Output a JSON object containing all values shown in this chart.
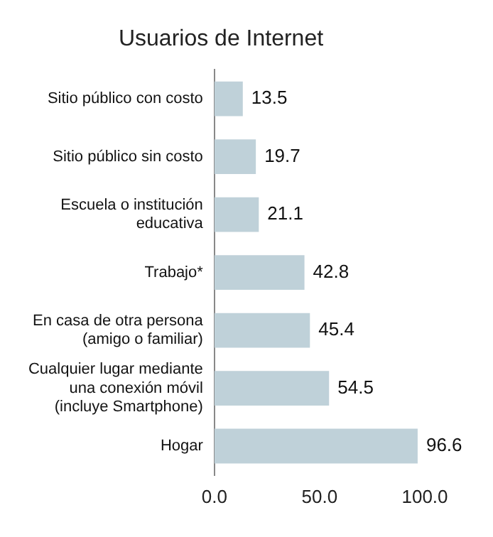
{
  "chart_data": {
    "type": "bar",
    "orientation": "horizontal",
    "title": "Usuarios de Internet",
    "categories": [
      "Sitio público con costo",
      "Sitio público sin costo",
      "Escuela o institución educativa",
      "Trabajo*",
      "En casa de otra persona (amigo o familiar)",
      "Cualquier lugar mediante una conexión móvil (incluye Smartphone)",
      "Hogar"
    ],
    "values": [
      13.5,
      19.7,
      21.1,
      42.8,
      45.4,
      54.5,
      96.6
    ],
    "color": "#bfd1d9",
    "xlim": [
      0,
      100
    ],
    "xticks": [
      {
        "value": 0,
        "label": "0.0"
      },
      {
        "value": 50,
        "label": "50.0"
      },
      {
        "value": 100,
        "label": "100.0"
      }
    ],
    "data_labels": true,
    "grid": false,
    "legend": false
  }
}
